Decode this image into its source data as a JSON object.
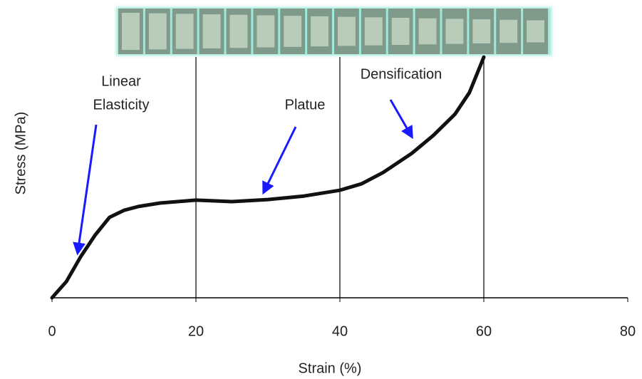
{
  "chart_data": {
    "type": "line",
    "x_label": "Strain (%)",
    "y_label": "Stress (MPa)",
    "x": [
      0,
      2,
      4,
      6,
      8,
      10,
      12,
      15,
      20,
      25,
      30,
      35,
      40,
      43,
      46,
      50,
      53,
      56,
      58,
      60
    ],
    "series": [
      {
        "color": "#111111",
        "values": [
          0,
          0.056,
          0.142,
          0.216,
          0.277,
          0.301,
          0.314,
          0.326,
          0.336,
          0.331,
          0.338,
          0.35,
          0.37,
          0.392,
          0.431,
          0.497,
          0.559,
          0.632,
          0.706,
          0.828
        ]
      }
    ],
    "xlim": [
      0,
      80
    ],
    "xticks": [
      0,
      20,
      40,
      60,
      80
    ],
    "ylim": [
      0,
      1
    ],
    "vlines": [
      20,
      40,
      60
    ],
    "annotations": [
      [
        "Linear",
        "Elasticity"
      ],
      [
        "Platue"
      ],
      [
        "Densification"
      ]
    ],
    "annotation_color": "#1a1aff"
  }
}
